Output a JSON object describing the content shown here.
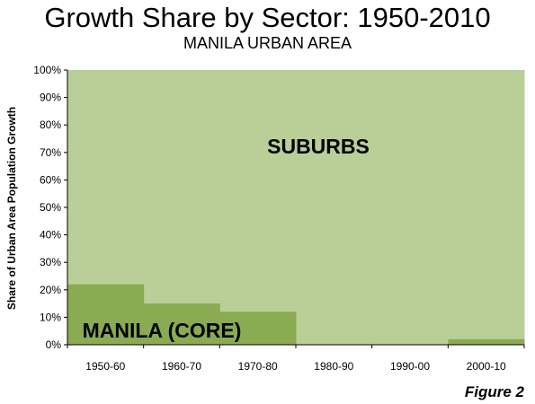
{
  "header": {
    "title": "Growth Share by Sector: 1950-2010",
    "subtitle": "MANILA URBAN AREA"
  },
  "figure_label": "Figure 2",
  "colors": {
    "suburbs": "#b9cf97",
    "core": "#8aab52",
    "axis": "#000000"
  },
  "chart_data": {
    "type": "area",
    "stacked": true,
    "title": "Growth Share by Sector: 1950-2010",
    "subtitle": "MANILA URBAN AREA",
    "xlabel": "",
    "ylabel": "Share of Urban Area Population Growth",
    "categories": [
      "1950-60",
      "1960-70",
      "1970-80",
      "1980-90",
      "1990-00",
      "2000-10"
    ],
    "series": [
      {
        "name": "MANILA (CORE)",
        "values": [
          22,
          15,
          12,
          0,
          0,
          2
        ]
      },
      {
        "name": "SUBURBS",
        "values": [
          78,
          85,
          88,
          100,
          100,
          98
        ]
      }
    ],
    "yticks": [
      "0%",
      "10%",
      "20%",
      "30%",
      "40%",
      "50%",
      "60%",
      "70%",
      "80%",
      "90%",
      "100%"
    ],
    "ylim": [
      0,
      100
    ],
    "grid": false,
    "legend": "none"
  }
}
